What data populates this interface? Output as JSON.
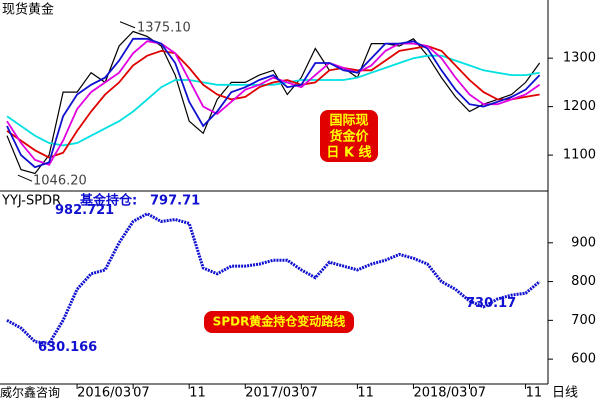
{
  "chart_data": [
    {
      "type": "line",
      "title": "现货黄金",
      "x": [
        -2,
        -1,
        0,
        1,
        2,
        3,
        4,
        5,
        6,
        7,
        8,
        9,
        10,
        11,
        12,
        13,
        14,
        15,
        16,
        17,
        18,
        19,
        20,
        21,
        22,
        23,
        24,
        25,
        26,
        27,
        28,
        29,
        30,
        31,
        32,
        33,
        34,
        35,
        36
      ],
      "xlim": [
        -2.5,
        36.6
      ],
      "ylim": [
        1028,
        1420
      ],
      "yticks": [
        1100,
        1200,
        1300
      ],
      "series": [
        {
          "color": "#000000",
          "values": [
            1140,
            1070,
            1062,
            1100,
            1230,
            1230,
            1270,
            1250,
            1325,
            1355,
            1345,
            1325,
            1265,
            1170,
            1145,
            1215,
            1250,
            1250,
            1265,
            1275,
            1225,
            1260,
            1320,
            1275,
            1280,
            1260,
            1330,
            1330,
            1325,
            1340,
            1305,
            1260,
            1220,
            1190,
            1205,
            1215,
            1225,
            1250,
            1290
          ]
        },
        {
          "color": "#00e0e0",
          "values": [
            1180,
            1160,
            1140,
            1125,
            1120,
            1125,
            1140,
            1155,
            1170,
            1190,
            1215,
            1240,
            1255,
            1255,
            1250,
            1245,
            1245,
            1245,
            1245,
            1245,
            1250,
            1255,
            1255,
            1255,
            1255,
            1260,
            1270,
            1280,
            1290,
            1300,
            1305,
            1305,
            1295,
            1285,
            1275,
            1270,
            1265,
            1265,
            1270
          ]
        },
        {
          "color": "#e00000",
          "values": [
            1150,
            1130,
            1110,
            1095,
            1105,
            1150,
            1190,
            1225,
            1250,
            1285,
            1305,
            1315,
            1310,
            1280,
            1245,
            1225,
            1215,
            1220,
            1240,
            1250,
            1255,
            1245,
            1250,
            1275,
            1280,
            1275,
            1275,
            1295,
            1315,
            1320,
            1325,
            1315,
            1285,
            1255,
            1230,
            1215,
            1215,
            1220,
            1225
          ]
        },
        {
          "color": "#e000e0",
          "values": [
            1170,
            1125,
            1090,
            1080,
            1130,
            1195,
            1230,
            1250,
            1270,
            1310,
            1335,
            1330,
            1310,
            1255,
            1200,
            1185,
            1210,
            1235,
            1245,
            1260,
            1250,
            1240,
            1265,
            1290,
            1280,
            1270,
            1285,
            1315,
            1330,
            1330,
            1325,
            1300,
            1260,
            1225,
            1205,
            1205,
            1215,
            1225,
            1245
          ]
        },
        {
          "color": "#1010d0",
          "values": [
            1160,
            1100,
            1075,
            1085,
            1180,
            1225,
            1245,
            1260,
            1295,
            1340,
            1340,
            1330,
            1290,
            1210,
            1160,
            1190,
            1230,
            1240,
            1255,
            1265,
            1240,
            1245,
            1290,
            1290,
            1275,
            1270,
            1300,
            1330,
            1330,
            1335,
            1320,
            1275,
            1235,
            1205,
            1200,
            1210,
            1220,
            1235,
            1265
          ]
        }
      ],
      "high": {
        "value": 1375.1,
        "label": "1375.10"
      },
      "low": {
        "value": 1046.2,
        "label": "1046.20"
      },
      "annotation_lines": [
        "国际现",
        "货金价",
        "日 K 线"
      ]
    },
    {
      "type": "line",
      "title": "YYJ-SPDR",
      "subtitle": "基金持仓:",
      "current_value": 797.71,
      "x": [
        -2,
        -1,
        0,
        1,
        2,
        3,
        4,
        5,
        6,
        7,
        8,
        9,
        10,
        11,
        12,
        13,
        14,
        15,
        16,
        17,
        18,
        19,
        20,
        21,
        22,
        23,
        24,
        25,
        26,
        27,
        28,
        29,
        30,
        31,
        32,
        33,
        34,
        35,
        36
      ],
      "xlim": [
        -2.5,
        36.6
      ],
      "ylim": [
        541,
        1031
      ],
      "yticks": [
        600,
        700,
        800,
        900
      ],
      "xticks": [
        {
          "value": 3,
          "label": "2016/03"
        },
        {
          "value": 7,
          "label": "07"
        },
        {
          "value": 11,
          "label": "11"
        },
        {
          "value": 15,
          "label": "2017/03"
        },
        {
          "value": 19,
          "label": "07"
        },
        {
          "value": 23,
          "label": "11"
        },
        {
          "value": 27,
          "label": "2018/03"
        },
        {
          "value": 31,
          "label": "07"
        },
        {
          "value": 35,
          "label": "11"
        }
      ],
      "series": [
        {
          "color": "#1010d0",
          "values": [
            700,
            680,
            645,
            640,
            700,
            780,
            820,
            830,
            900,
            955,
            975,
            955,
            960,
            950,
            835,
            820,
            840,
            840,
            845,
            855,
            855,
            830,
            810,
            850,
            840,
            830,
            845,
            855,
            870,
            860,
            845,
            800,
            780,
            750,
            735,
            755,
            765,
            770,
            800
          ]
        }
      ],
      "max_value": 982.721,
      "min_value": 630.166,
      "last_low": 730.17,
      "annotation": "SPDR黄金持仓变动路线",
      "source": "威尔鑫咨询",
      "x_label": "日线"
    }
  ]
}
